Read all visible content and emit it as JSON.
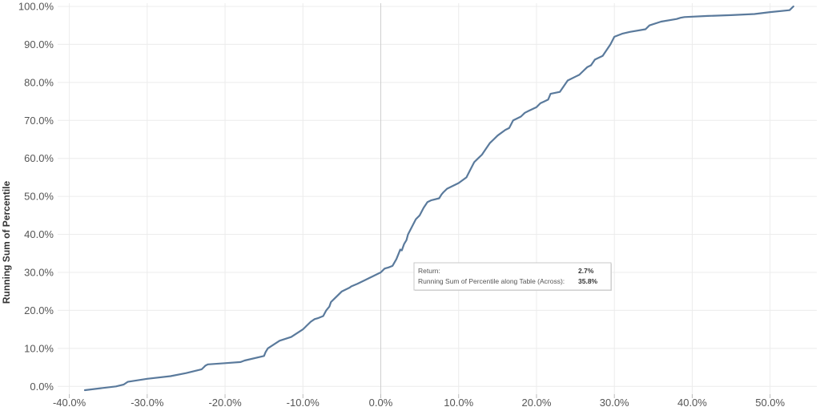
{
  "chart_data": {
    "type": "line",
    "xlabel": "",
    "ylabel": "Running Sum of Percentile",
    "xlim": [
      -0.415,
      0.56
    ],
    "ylim": [
      -0.01,
      1.0
    ],
    "x_ticks": [
      "-40.0%",
      "-30.0%",
      "-20.0%",
      "-10.0%",
      "0.0%",
      "10.0%",
      "20.0%",
      "30.0%",
      "40.0%",
      "50.0%"
    ],
    "x_tick_values": [
      -0.4,
      -0.3,
      -0.2,
      -0.1,
      0.0,
      0.1,
      0.2,
      0.3,
      0.4,
      0.5
    ],
    "y_ticks": [
      "0.0%",
      "10.0%",
      "20.0%",
      "30.0%",
      "40.0%",
      "50.0%",
      "60.0%",
      "70.0%",
      "80.0%",
      "90.0%",
      "100.0%"
    ],
    "y_tick_values": [
      0.0,
      0.1,
      0.2,
      0.3,
      0.4,
      0.5,
      0.6,
      0.7,
      0.8,
      0.9,
      1.0
    ],
    "grid": true,
    "color": "#5a7a9c",
    "series": [
      {
        "x": [
          -0.38,
          -0.36,
          -0.34,
          -0.33,
          -0.325,
          -0.3,
          -0.27,
          -0.25,
          -0.23,
          -0.225,
          -0.222,
          -0.2,
          -0.18,
          -0.175,
          -0.15,
          -0.148,
          -0.145,
          -0.13,
          -0.115,
          -0.1,
          -0.095,
          -0.09,
          -0.085,
          -0.08,
          -0.074,
          -0.07,
          -0.066,
          -0.064,
          -0.06,
          -0.05,
          -0.04,
          -0.038,
          -0.03,
          -0.02,
          -0.015,
          -0.01,
          -0.005,
          0.0,
          0.003,
          0.005,
          0.01,
          0.015,
          0.02,
          0.023,
          0.025,
          0.027,
          0.03,
          0.033,
          0.035,
          0.04,
          0.045,
          0.05,
          0.055,
          0.06,
          0.065,
          0.075,
          0.078,
          0.08,
          0.085,
          0.09,
          0.1,
          0.11,
          0.115,
          0.12,
          0.125,
          0.13,
          0.135,
          0.14,
          0.145,
          0.15,
          0.16,
          0.165,
          0.17,
          0.175,
          0.18,
          0.185,
          0.19,
          0.2,
          0.205,
          0.21,
          0.215,
          0.218,
          0.23,
          0.235,
          0.24,
          0.25,
          0.255,
          0.26,
          0.265,
          0.27,
          0.275,
          0.28,
          0.285,
          0.29,
          0.295,
          0.3,
          0.31,
          0.32,
          0.34,
          0.345,
          0.36,
          0.38,
          0.385,
          0.39,
          0.42,
          0.45,
          0.48,
          0.5,
          0.525,
          0.53
        ],
        "y": [
          -0.01,
          -0.005,
          0.0,
          0.005,
          0.012,
          0.02,
          0.027,
          0.035,
          0.045,
          0.055,
          0.058,
          0.061,
          0.064,
          0.068,
          0.08,
          0.09,
          0.1,
          0.12,
          0.13,
          0.15,
          0.16,
          0.17,
          0.177,
          0.18,
          0.185,
          0.2,
          0.21,
          0.222,
          0.23,
          0.25,
          0.26,
          0.263,
          0.27,
          0.28,
          0.285,
          0.29,
          0.295,
          0.3,
          0.306,
          0.31,
          0.313,
          0.317,
          0.335,
          0.35,
          0.36,
          0.358,
          0.375,
          0.385,
          0.4,
          0.42,
          0.44,
          0.45,
          0.47,
          0.485,
          0.49,
          0.495,
          0.505,
          0.51,
          0.52,
          0.525,
          0.535,
          0.55,
          0.57,
          0.59,
          0.6,
          0.61,
          0.625,
          0.64,
          0.65,
          0.66,
          0.675,
          0.68,
          0.7,
          0.705,
          0.71,
          0.72,
          0.725,
          0.735,
          0.745,
          0.75,
          0.755,
          0.77,
          0.775,
          0.79,
          0.805,
          0.815,
          0.82,
          0.83,
          0.84,
          0.845,
          0.86,
          0.865,
          0.87,
          0.885,
          0.9,
          0.92,
          0.928,
          0.933,
          0.94,
          0.95,
          0.96,
          0.967,
          0.97,
          0.972,
          0.975,
          0.977,
          0.98,
          0.985,
          0.99,
          1.0
        ]
      }
    ],
    "tooltip": {
      "label1": "Return:",
      "value1": "2.7%",
      "label2": "Running Sum of Percentile along Table (Across):",
      "value2": "35.8%",
      "x": 0.027,
      "y": 0.358
    }
  }
}
